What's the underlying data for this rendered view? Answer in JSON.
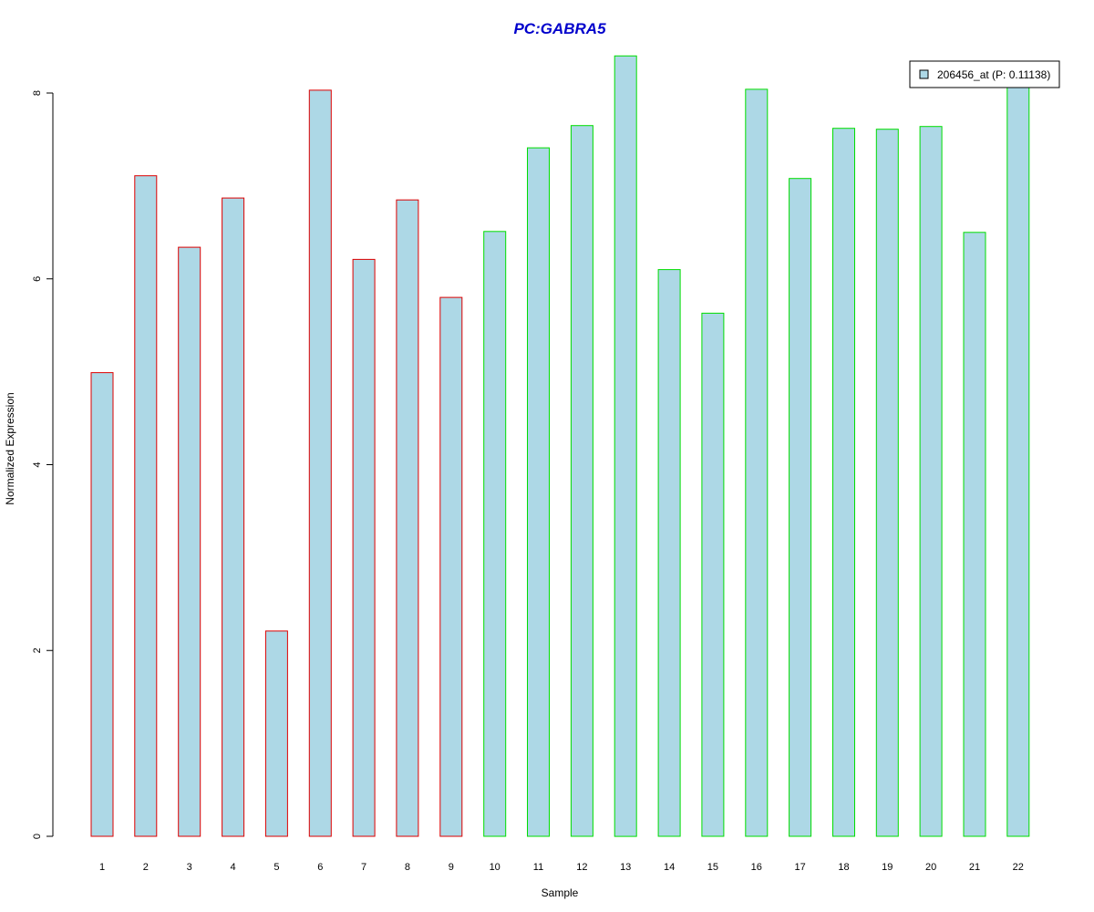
{
  "chart_data": {
    "type": "bar",
    "title": "PC:GABRA5",
    "xlabel": "Sample",
    "ylabel": "Normalized Expression",
    "categories": [
      "1",
      "2",
      "3",
      "4",
      "5",
      "6",
      "7",
      "8",
      "9",
      "10",
      "11",
      "12",
      "13",
      "14",
      "15",
      "16",
      "17",
      "18",
      "19",
      "20",
      "21",
      "22"
    ],
    "series": [
      {
        "name": "206456_at (P: 0.11138)",
        "values": [
          4.99,
          7.11,
          6.34,
          6.87,
          2.21,
          8.03,
          6.21,
          6.85,
          5.8,
          6.51,
          7.41,
          7.65,
          8.4,
          6.1,
          5.63,
          8.04,
          7.08,
          7.62,
          7.61,
          7.64,
          6.5,
          8.06
        ]
      }
    ],
    "groups": [
      "1",
      "1",
      "1",
      "1",
      "1",
      "1",
      "1",
      "1",
      "1",
      "2",
      "2",
      "2",
      "2",
      "2",
      "2",
      "2",
      "2",
      "2",
      "2",
      "2",
      "2",
      "2"
    ],
    "ylim": [
      0,
      8.4
    ],
    "yticks": [
      0,
      2,
      4,
      6,
      8
    ],
    "grid": false,
    "legend_position": "top-right",
    "colors": {
      "fill": "#add8e6",
      "group_1_border": "#dd0000",
      "group_2_border": "#00dd00",
      "title": "#0000cc",
      "axis": "#000000"
    }
  }
}
